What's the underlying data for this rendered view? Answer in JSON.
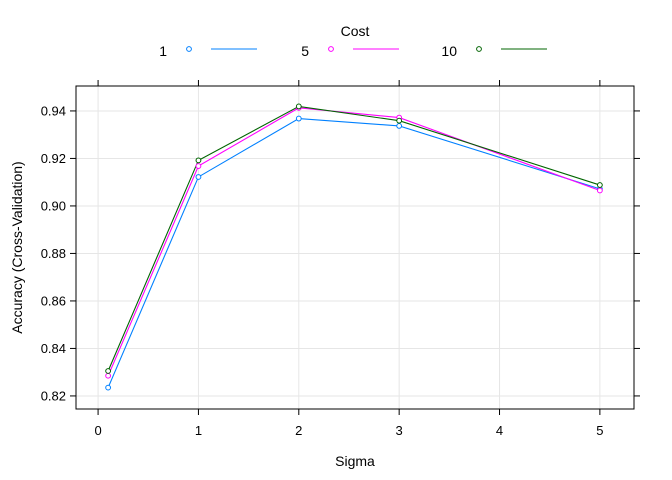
{
  "chart_data": {
    "type": "line",
    "title": "",
    "xlabel": "Sigma",
    "ylabel": "Accuracy (Cross-Validation)",
    "xlim": [
      -0.22,
      5.34
    ],
    "ylim": [
      0.8145,
      0.9505
    ],
    "x_ticks": [
      "0",
      "1",
      "2",
      "3",
      "4",
      "5"
    ],
    "y_ticks": [
      "0.82",
      "0.84",
      "0.86",
      "0.88",
      "0.90",
      "0.92",
      "0.94"
    ],
    "grid": true,
    "legend": {
      "title": "Cost",
      "placement": "top"
    },
    "x": [
      0.1,
      1,
      2,
      3,
      5
    ],
    "series": [
      {
        "name": "1",
        "color": "#0080ff",
        "values": [
          0.8235,
          0.9122,
          0.9368,
          0.9337,
          0.9072
        ]
      },
      {
        "name": "5",
        "color": "#ff00ff",
        "values": [
          0.8285,
          0.9168,
          0.9413,
          0.9372,
          0.9065
        ]
      },
      {
        "name": "10",
        "color": "#006400",
        "values": [
          0.8305,
          0.9192,
          0.9419,
          0.9359,
          0.9088
        ]
      }
    ]
  }
}
